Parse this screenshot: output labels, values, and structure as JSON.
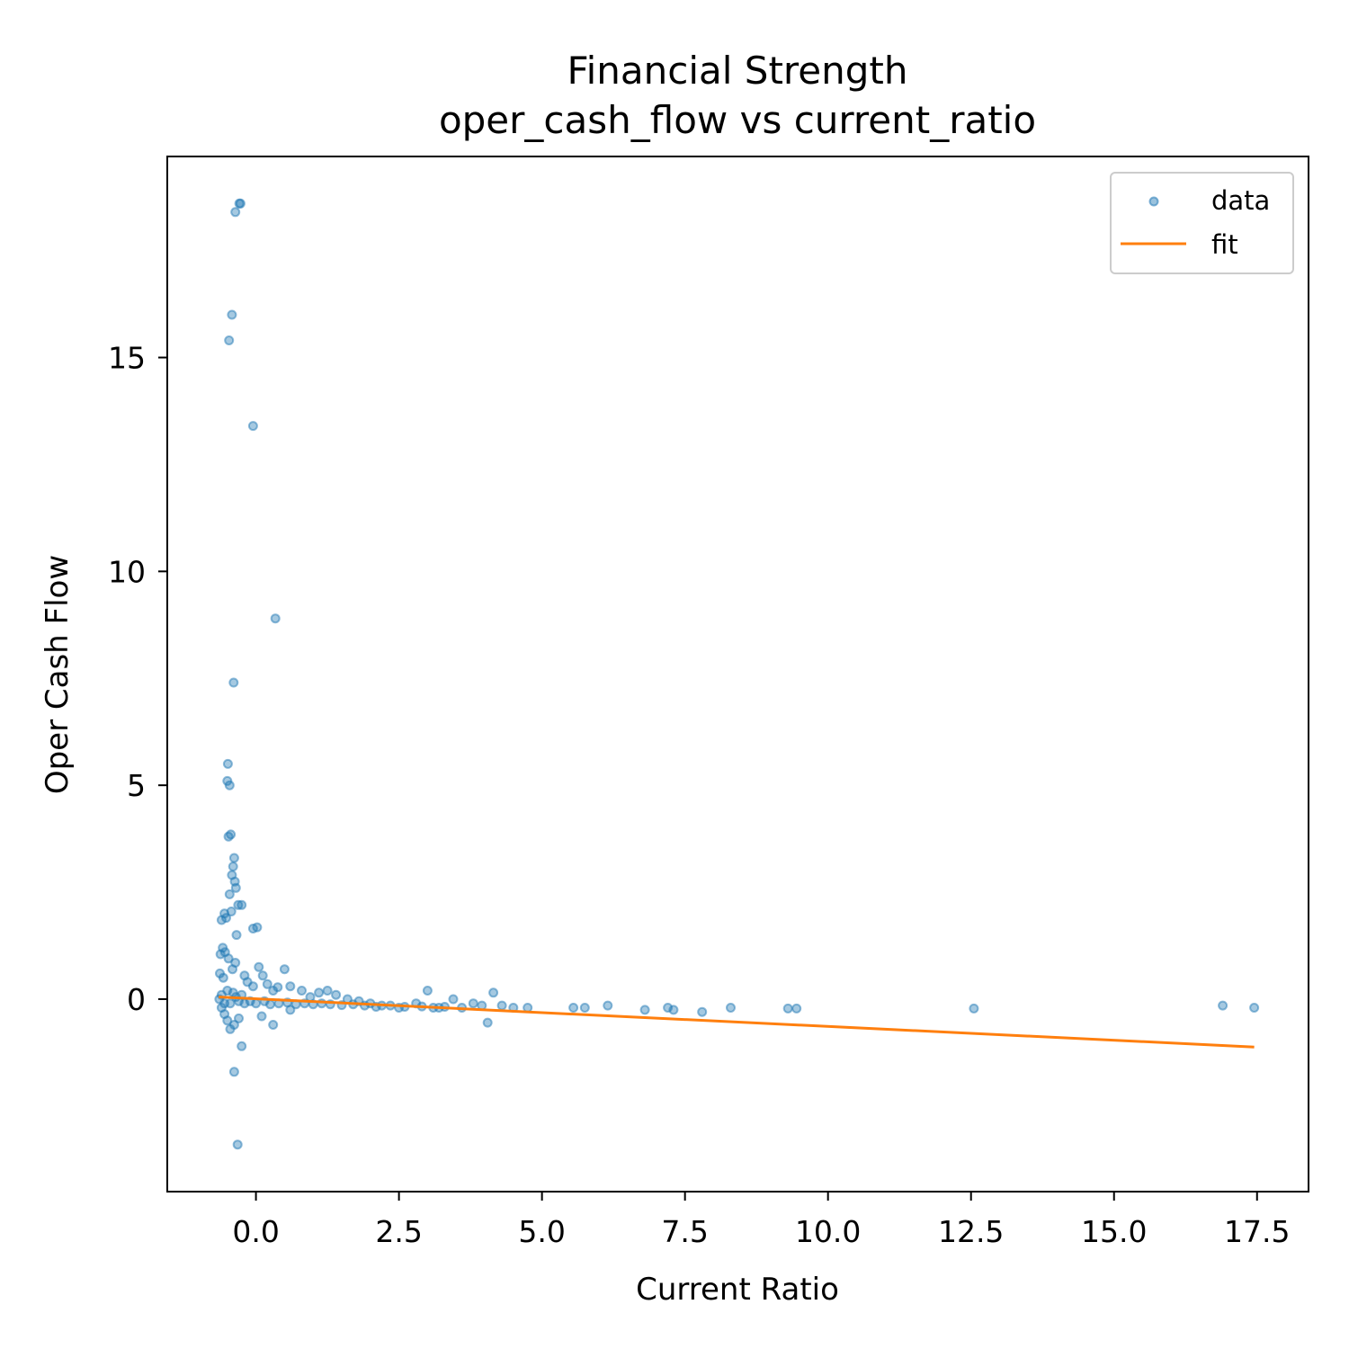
{
  "chart_data": {
    "type": "scatter",
    "title": "Financial Strength",
    "subtitle": "oper_cash_flow vs current_ratio",
    "xlabel": "Current Ratio",
    "ylabel": "Oper Cash Flow",
    "xlim": [
      -1.55,
      18.4
    ],
    "ylim": [
      -4.5,
      19.7
    ],
    "xticks": [
      0.0,
      2.5,
      5.0,
      7.5,
      10.0,
      12.5,
      15.0,
      17.5
    ],
    "xtick_labels": [
      "0.0",
      "2.5",
      "5.0",
      "7.5",
      "10.0",
      "12.5",
      "15.0",
      "17.5"
    ],
    "yticks": [
      0,
      5,
      10,
      15
    ],
    "ytick_labels": [
      "0",
      "5",
      "10",
      "15"
    ],
    "grid": false,
    "legend": {
      "position": "top-right",
      "entries": [
        "data",
        "fit"
      ]
    },
    "colors": {
      "data": "#1f77b4",
      "fit": "#ff7f0e"
    },
    "series": [
      {
        "name": "data",
        "kind": "scatter",
        "points": [
          [
            -0.27,
            18.6
          ],
          [
            -0.29,
            18.6
          ],
          [
            -0.36,
            18.4
          ],
          [
            -0.42,
            16.0
          ],
          [
            -0.47,
            15.4
          ],
          [
            -0.05,
            13.4
          ],
          [
            0.34,
            8.9
          ],
          [
            -0.39,
            7.4
          ],
          [
            -0.49,
            5.5
          ],
          [
            -0.5,
            5.1
          ],
          [
            -0.46,
            5.0
          ],
          [
            -0.48,
            3.8
          ],
          [
            -0.44,
            3.85
          ],
          [
            -0.38,
            3.3
          ],
          [
            -0.4,
            3.1
          ],
          [
            -0.42,
            2.9
          ],
          [
            -0.37,
            2.75
          ],
          [
            -0.35,
            2.6
          ],
          [
            -0.46,
            2.45
          ],
          [
            -0.31,
            2.2
          ],
          [
            -0.25,
            2.2
          ],
          [
            -0.55,
            2.0
          ],
          [
            -0.6,
            1.85
          ],
          [
            -0.52,
            1.9
          ],
          [
            -0.43,
            2.05
          ],
          [
            -0.05,
            1.65
          ],
          [
            0.02,
            1.68
          ],
          [
            -0.34,
            1.5
          ],
          [
            -0.58,
            1.2
          ],
          [
            -0.54,
            1.1
          ],
          [
            -0.62,
            1.05
          ],
          [
            -0.48,
            0.95
          ],
          [
            -0.36,
            0.85
          ],
          [
            -0.41,
            0.7
          ],
          [
            -0.63,
            0.6
          ],
          [
            -0.57,
            0.5
          ],
          [
            -0.2,
            0.55
          ],
          [
            -0.15,
            0.4
          ],
          [
            -0.05,
            0.3
          ],
          [
            0.05,
            0.75
          ],
          [
            0.12,
            0.55
          ],
          [
            0.2,
            0.35
          ],
          [
            0.3,
            0.2
          ],
          [
            0.38,
            0.28
          ],
          [
            0.5,
            0.7
          ],
          [
            0.6,
            0.3
          ],
          [
            0.8,
            0.2
          ],
          [
            0.95,
            0.05
          ],
          [
            1.1,
            0.15
          ],
          [
            1.25,
            0.2
          ],
          [
            1.4,
            0.1
          ],
          [
            1.6,
            0.0
          ],
          [
            1.8,
            -0.05
          ],
          [
            2.0,
            -0.1
          ],
          [
            2.2,
            -0.15
          ],
          [
            2.5,
            -0.2
          ],
          [
            2.8,
            -0.1
          ],
          [
            3.0,
            0.2
          ],
          [
            3.2,
            -0.2
          ],
          [
            3.45,
            0.0
          ],
          [
            3.6,
            -0.2
          ],
          [
            3.8,
            -0.1
          ],
          [
            3.95,
            -0.15
          ],
          [
            4.05,
            -0.55
          ],
          [
            4.15,
            0.15
          ],
          [
            4.3,
            -0.15
          ],
          [
            4.5,
            -0.2
          ],
          [
            4.75,
            -0.2
          ],
          [
            5.55,
            -0.2
          ],
          [
            5.75,
            -0.2
          ],
          [
            6.15,
            -0.15
          ],
          [
            6.8,
            -0.25
          ],
          [
            7.2,
            -0.2
          ],
          [
            7.3,
            -0.25
          ],
          [
            7.8,
            -0.3
          ],
          [
            8.3,
            -0.2
          ],
          [
            9.3,
            -0.22
          ],
          [
            9.45,
            -0.22
          ],
          [
            12.55,
            -0.22
          ],
          [
            16.9,
            -0.15
          ],
          [
            17.45,
            -0.2
          ],
          [
            -0.6,
            -0.2
          ],
          [
            -0.55,
            -0.35
          ],
          [
            -0.5,
            -0.5
          ],
          [
            -0.45,
            -0.7
          ],
          [
            -0.38,
            -0.6
          ],
          [
            -0.3,
            -0.45
          ],
          [
            -0.25,
            -1.1
          ],
          [
            -0.38,
            -1.7
          ],
          [
            -0.32,
            -3.4
          ],
          [
            0.3,
            -0.6
          ],
          [
            0.1,
            -0.4
          ],
          [
            0.6,
            -0.25
          ],
          [
            -0.64,
            0.0
          ],
          [
            -0.6,
            0.1
          ],
          [
            -0.55,
            -0.1
          ],
          [
            -0.5,
            0.2
          ],
          [
            -0.45,
            -0.1
          ],
          [
            -0.4,
            0.15
          ],
          [
            -0.35,
            0.05
          ],
          [
            -0.3,
            -0.05
          ],
          [
            -0.25,
            0.1
          ],
          [
            -0.2,
            -0.1
          ],
          [
            -0.1,
            -0.05
          ],
          [
            0.0,
            -0.1
          ],
          [
            0.15,
            -0.05
          ],
          [
            0.25,
            -0.12
          ],
          [
            0.4,
            -0.1
          ],
          [
            0.55,
            -0.08
          ],
          [
            0.7,
            -0.12
          ],
          [
            0.85,
            -0.1
          ],
          [
            1.0,
            -0.12
          ],
          [
            1.15,
            -0.1
          ],
          [
            1.3,
            -0.12
          ],
          [
            1.5,
            -0.14
          ],
          [
            1.7,
            -0.12
          ],
          [
            1.9,
            -0.15
          ],
          [
            2.1,
            -0.18
          ],
          [
            2.35,
            -0.15
          ],
          [
            2.6,
            -0.18
          ],
          [
            2.9,
            -0.17
          ],
          [
            3.1,
            -0.2
          ],
          [
            3.3,
            -0.18
          ]
        ]
      },
      {
        "name": "fit",
        "kind": "line",
        "points": [
          [
            -0.65,
            0.05
          ],
          [
            17.45,
            -1.12
          ]
        ]
      }
    ]
  }
}
